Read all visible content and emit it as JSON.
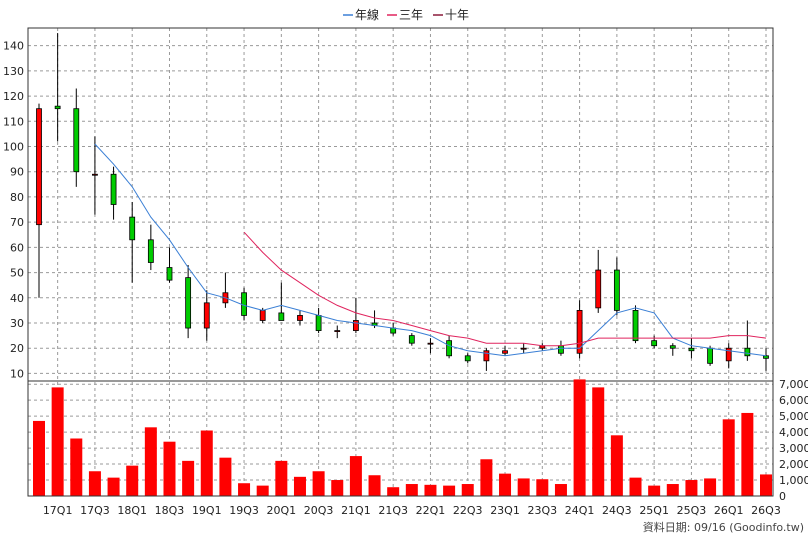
{
  "chart_data": {
    "type": "candlestick",
    "legend": [
      {
        "name": "年線",
        "color": "#3a7fd5"
      },
      {
        "name": "三年",
        "color": "#e0245e"
      },
      {
        "name": "十年",
        "color": "#8b1a3a"
      }
    ],
    "legend_placement": "top-center",
    "grid": true,
    "price_axis": {
      "ticks": [
        10,
        20,
        30,
        40,
        50,
        60,
        70,
        80,
        90,
        100,
        110,
        120,
        130,
        140
      ],
      "range": [
        7,
        147
      ]
    },
    "volume_axis": {
      "ticks": [
        "0",
        "1,000",
        "2,000",
        "3,000",
        "4,000",
        "5,000",
        "6,000",
        "7,000"
      ],
      "range": [
        0,
        7200
      ]
    },
    "x_tick_labels": [
      "17Q1",
      "17Q3",
      "18Q1",
      "18Q3",
      "19Q1",
      "19Q3",
      "20Q1",
      "20Q3",
      "21Q1",
      "21Q3",
      "22Q1",
      "22Q3",
      "23Q1",
      "23Q3",
      "24Q1",
      "24Q3",
      "25Q1",
      "25Q3",
      "26Q1",
      "26Q3"
    ],
    "candles": [
      {
        "open": 69,
        "high": 117,
        "low": 40,
        "close": 115,
        "volume": 4700
      },
      {
        "open": 116,
        "high": 145,
        "low": 102,
        "close": 115,
        "volume": 6800
      },
      {
        "open": 115,
        "high": 123,
        "low": 84,
        "close": 90,
        "volume": 3600
      },
      {
        "open": 89,
        "high": 104,
        "low": 73,
        "close": 89,
        "volume": 1550
      },
      {
        "open": 89,
        "high": 92,
        "low": 71,
        "close": 77,
        "volume": 1150
      },
      {
        "open": 72,
        "high": 78,
        "low": 46,
        "close": 63,
        "volume": 1900
      },
      {
        "open": 63,
        "high": 69,
        "low": 51,
        "close": 54,
        "volume": 4300
      },
      {
        "open": 52,
        "high": 60,
        "low": 46,
        "close": 47,
        "volume": 3400
      },
      {
        "open": 48,
        "high": 53,
        "low": 24,
        "close": 28,
        "volume": 2200
      },
      {
        "open": 28,
        "high": 43,
        "low": 23,
        "close": 38,
        "volume": 4100
      },
      {
        "open": 38,
        "high": 50,
        "low": 36,
        "close": 42,
        "volume": 2400
      },
      {
        "open": 42,
        "high": 44,
        "low": 31,
        "close": 33,
        "volume": 800
      },
      {
        "open": 31,
        "high": 36,
        "low": 30,
        "close": 35,
        "volume": 650
      },
      {
        "open": 34,
        "high": 46,
        "low": 31,
        "close": 31,
        "volume": 2200
      },
      {
        "open": 31,
        "high": 35,
        "low": 29,
        "close": 33,
        "volume": 1200
      },
      {
        "open": 33,
        "high": 36,
        "low": 26,
        "close": 27,
        "volume": 1550
      },
      {
        "open": 27,
        "high": 29,
        "low": 24,
        "close": 27,
        "volume": 1000
      },
      {
        "open": 27,
        "high": 40,
        "low": 26,
        "close": 31,
        "volume": 2500
      },
      {
        "open": 30,
        "high": 35,
        "low": 28,
        "close": 29,
        "volume": 1300
      },
      {
        "open": 28,
        "high": 30,
        "low": 25,
        "close": 26,
        "volume": 550
      },
      {
        "open": 25,
        "high": 26,
        "low": 21,
        "close": 22,
        "volume": 750
      },
      {
        "open": 22,
        "high": 24,
        "low": 18,
        "close": 22,
        "volume": 700
      },
      {
        "open": 23,
        "high": 25,
        "low": 16,
        "close": 17,
        "volume": 650
      },
      {
        "open": 17,
        "high": 18,
        "low": 14,
        "close": 15,
        "volume": 750
      },
      {
        "open": 15,
        "high": 20,
        "low": 11,
        "close": 19,
        "volume": 2300
      },
      {
        "open": 18,
        "high": 21,
        "low": 17,
        "close": 19,
        "volume": 1400
      },
      {
        "open": 20,
        "high": 22,
        "low": 18,
        "close": 20,
        "volume": 1100
      },
      {
        "open": 20,
        "high": 22,
        "low": 19,
        "close": 21,
        "volume": 1050
      },
      {
        "open": 21,
        "high": 23,
        "low": 17,
        "close": 18,
        "volume": 750
      },
      {
        "open": 18,
        "high": 39,
        "low": 16,
        "close": 35,
        "volume": 7300
      },
      {
        "open": 36,
        "high": 59,
        "low": 34,
        "close": 51,
        "volume": 6800
      },
      {
        "open": 51,
        "high": 56,
        "low": 33,
        "close": 35,
        "volume": 3800
      },
      {
        "open": 35,
        "high": 37,
        "low": 22,
        "close": 23,
        "volume": 1150
      },
      {
        "open": 23,
        "high": 25,
        "low": 20,
        "close": 21,
        "volume": 650
      },
      {
        "open": 21,
        "high": 22,
        "low": 17,
        "close": 20,
        "volume": 750
      },
      {
        "open": 20,
        "high": 24,
        "low": 16,
        "close": 19,
        "volume": 1000
      },
      {
        "open": 20,
        "high": 21,
        "low": 13,
        "close": 14,
        "volume": 1100
      },
      {
        "open": 15,
        "high": 22,
        "low": 12,
        "close": 20,
        "volume": 4800
      },
      {
        "open": 20,
        "high": 31,
        "low": 15,
        "close": 17,
        "volume": 5200
      },
      {
        "open": 17,
        "high": 20,
        "low": 11,
        "close": 16,
        "volume": 1350
      }
    ],
    "year_line": [
      null,
      null,
      null,
      101,
      93,
      84,
      72,
      63,
      52,
      42,
      40,
      37,
      35,
      37,
      35,
      33,
      31,
      30,
      29,
      28,
      27,
      25,
      21,
      19,
      18,
      17,
      18,
      19,
      20,
      20,
      27,
      34,
      36,
      34,
      24,
      21,
      20,
      19,
      18,
      17
    ],
    "three_year_line": [
      null,
      null,
      null,
      null,
      null,
      null,
      null,
      null,
      null,
      null,
      null,
      66,
      58,
      51,
      46,
      41,
      37,
      34,
      32,
      31,
      29,
      27,
      25,
      24,
      22,
      22,
      22,
      21,
      21,
      22,
      24,
      24,
      24,
      24,
      24,
      24,
      24,
      25,
      25,
      24
    ],
    "footer": "資料日期: 09/16  (Goodinfo.tw)"
  }
}
